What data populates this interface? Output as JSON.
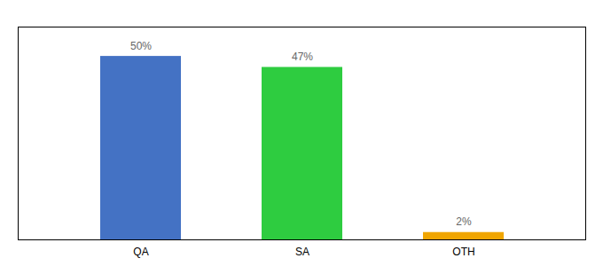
{
  "chart_data": {
    "type": "bar",
    "categories": [
      "QA",
      "SA",
      "OTH"
    ],
    "values": [
      50,
      47,
      2
    ],
    "value_labels": [
      "50%",
      "47%",
      "2%"
    ],
    "colors": [
      "#4472c4",
      "#2ecc40",
      "#f0a500"
    ],
    "ylim": [
      0,
      58
    ],
    "grid": false,
    "data_labels": true,
    "tick_labels": "x"
  }
}
